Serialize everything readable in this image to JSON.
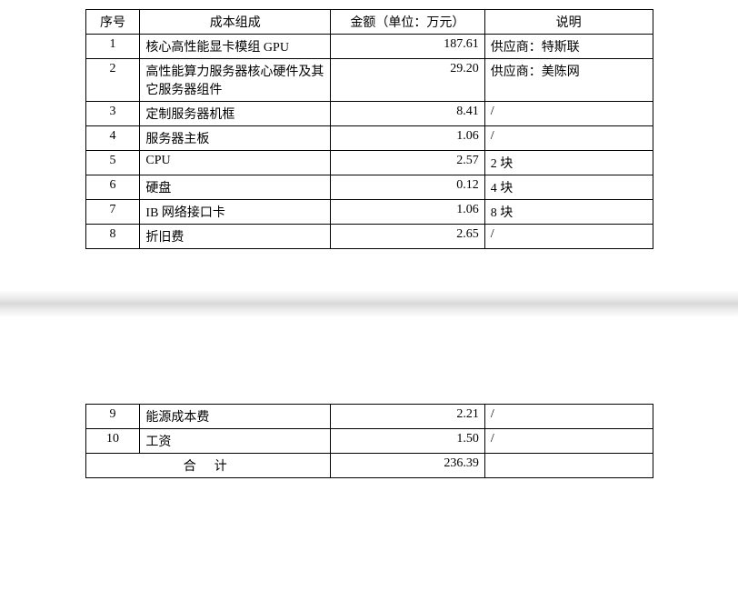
{
  "headers": {
    "seq": "序号",
    "comp": "成本组成",
    "amount": "金额（单位：万元）",
    "desc": "说明"
  },
  "rows_page1": [
    {
      "seq": "1",
      "comp": "核心高性能显卡模组 GPU",
      "amount": "187.61",
      "desc": "供应商：特斯联"
    },
    {
      "seq": "2",
      "comp": "高性能算力服务器核心硬件及其它服务器组件",
      "amount": "29.20",
      "desc": "供应商：美陈网"
    },
    {
      "seq": "3",
      "comp": "定制服务器机框",
      "amount": "8.41",
      "desc": "/"
    },
    {
      "seq": "4",
      "comp": "服务器主板",
      "amount": "1.06",
      "desc": "/"
    },
    {
      "seq": "5",
      "comp": "CPU",
      "amount": "2.57",
      "desc": "2 块"
    },
    {
      "seq": "6",
      "comp": "硬盘",
      "amount": "0.12",
      "desc": "4 块"
    },
    {
      "seq": "7",
      "comp": "IB 网络接口卡",
      "amount": "1.06",
      "desc": "8 块"
    },
    {
      "seq": "8",
      "comp": "折旧费",
      "amount": "2.65",
      "desc": "/"
    }
  ],
  "rows_page2": [
    {
      "seq": "9",
      "comp": "能源成本费",
      "amount": "2.21",
      "desc": "/"
    },
    {
      "seq": "10",
      "comp": "工资",
      "amount": "1.50",
      "desc": "/"
    }
  ],
  "total": {
    "label": "合计",
    "amount": "236.39",
    "desc": ""
  }
}
